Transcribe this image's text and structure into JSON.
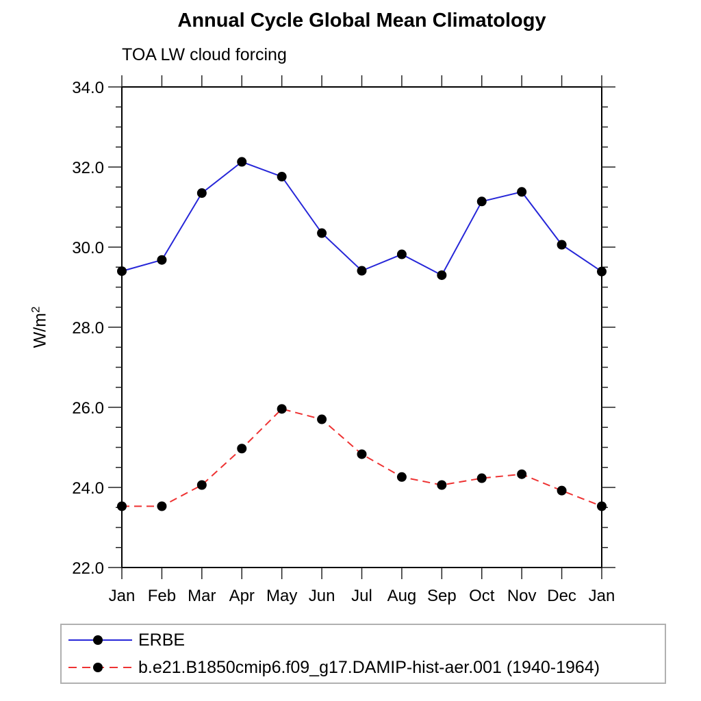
{
  "page": {
    "background": "#ffffff"
  },
  "title": "Annual Cycle Global Mean Climatology",
  "subtitle": "TOA LW cloud forcing",
  "ylabel": {
    "base": "W/m",
    "exp": "2"
  },
  "chart_data": {
    "type": "line",
    "title": "Annual Cycle Global Mean Climatology",
    "subtitle": "TOA LW cloud forcing",
    "xlabel": "",
    "ylabel": "W/m²",
    "categories": [
      "Jan",
      "Feb",
      "Mar",
      "Apr",
      "May",
      "Jun",
      "Jul",
      "Aug",
      "Sep",
      "Oct",
      "Nov",
      "Dec",
      "Jan"
    ],
    "ylim": [
      22.0,
      34.0
    ],
    "y_major_step": 2.0,
    "y_minor_step": 0.5,
    "y_tick_labels": [
      "22.0",
      "24.0",
      "26.0",
      "28.0",
      "30.0",
      "32.0",
      "34.0"
    ],
    "grid": false,
    "tick_direction": "out",
    "frame_color": "#000000",
    "legend_position": "bottom-box",
    "series": [
      {
        "name": "ERBE",
        "color": "#2626d8",
        "line_style": "solid",
        "marker": "filled-circle",
        "marker_color": "#000000",
        "values": [
          29.4,
          29.68,
          31.35,
          32.13,
          31.76,
          30.35,
          29.41,
          29.82,
          29.3,
          31.14,
          31.38,
          30.06,
          29.39
        ]
      },
      {
        "name": "b.e21.B1850cmip6.f09_g17.DAMIP-hist-aer.001 (1940-1964)",
        "color": "#ee3232",
        "line_style": "dashed",
        "marker": "filled-circle",
        "marker_color": "#000000",
        "values": [
          23.53,
          23.53,
          24.06,
          24.97,
          25.96,
          25.7,
          24.83,
          24.26,
          24.06,
          24.23,
          24.33,
          23.92,
          23.53
        ]
      }
    ]
  }
}
